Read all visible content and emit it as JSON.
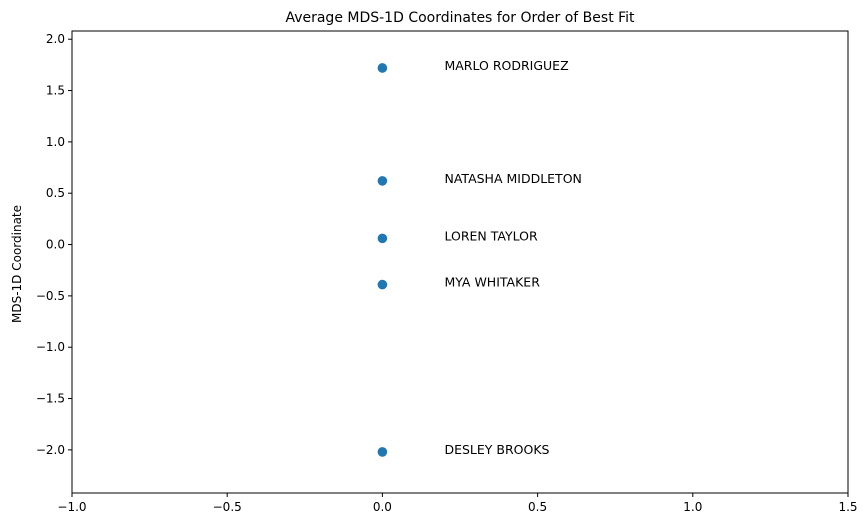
{
  "chart_data": {
    "type": "scatter",
    "title": "Average MDS-1D Coordinates for Order of Best Fit",
    "xlabel": "",
    "ylabel": "MDS-1D Coordinate",
    "xlim": [
      -1.0,
      1.5
    ],
    "ylim": [
      -2.42,
      2.08
    ],
    "grid": false,
    "point_color": "#1f77b4",
    "x_ticks": [
      {
        "value": -1.0,
        "label": "−1.0"
      },
      {
        "value": -0.5,
        "label": "−0.5"
      },
      {
        "value": 0.0,
        "label": "0.0"
      },
      {
        "value": 0.5,
        "label": "0.5"
      },
      {
        "value": 1.0,
        "label": "1.0"
      },
      {
        "value": 1.5,
        "label": "1.5"
      }
    ],
    "y_ticks": [
      {
        "value": 2.0,
        "label": "2.0"
      },
      {
        "value": 1.5,
        "label": "1.5"
      },
      {
        "value": 1.0,
        "label": "1.0"
      },
      {
        "value": 0.5,
        "label": "0.5"
      },
      {
        "value": 0.0,
        "label": "0.0"
      },
      {
        "value": -0.5,
        "label": "−0.5"
      },
      {
        "value": -1.0,
        "label": "−1.0"
      },
      {
        "value": -1.5,
        "label": "−1.5"
      },
      {
        "value": -2.0,
        "label": "−2.0"
      }
    ],
    "points": [
      {
        "x": 0.0,
        "y": 1.72,
        "label": "MARLO RODRIGUEZ",
        "label_x": 0.2,
        "label_y": 1.74
      },
      {
        "x": 0.0,
        "y": 0.62,
        "label": "NATASHA MIDDLETON",
        "label_x": 0.2,
        "label_y": 0.64
      },
      {
        "x": 0.0,
        "y": 0.06,
        "label": "LOREN TAYLOR",
        "label_x": 0.2,
        "label_y": 0.08
      },
      {
        "x": 0.0,
        "y": -0.39,
        "label": "MYA WHITAKER",
        "label_x": 0.2,
        "label_y": -0.37
      },
      {
        "x": 0.0,
        "y": -2.02,
        "label": "DESLEY BROOKS",
        "label_x": 0.2,
        "label_y": -2.0
      }
    ]
  }
}
